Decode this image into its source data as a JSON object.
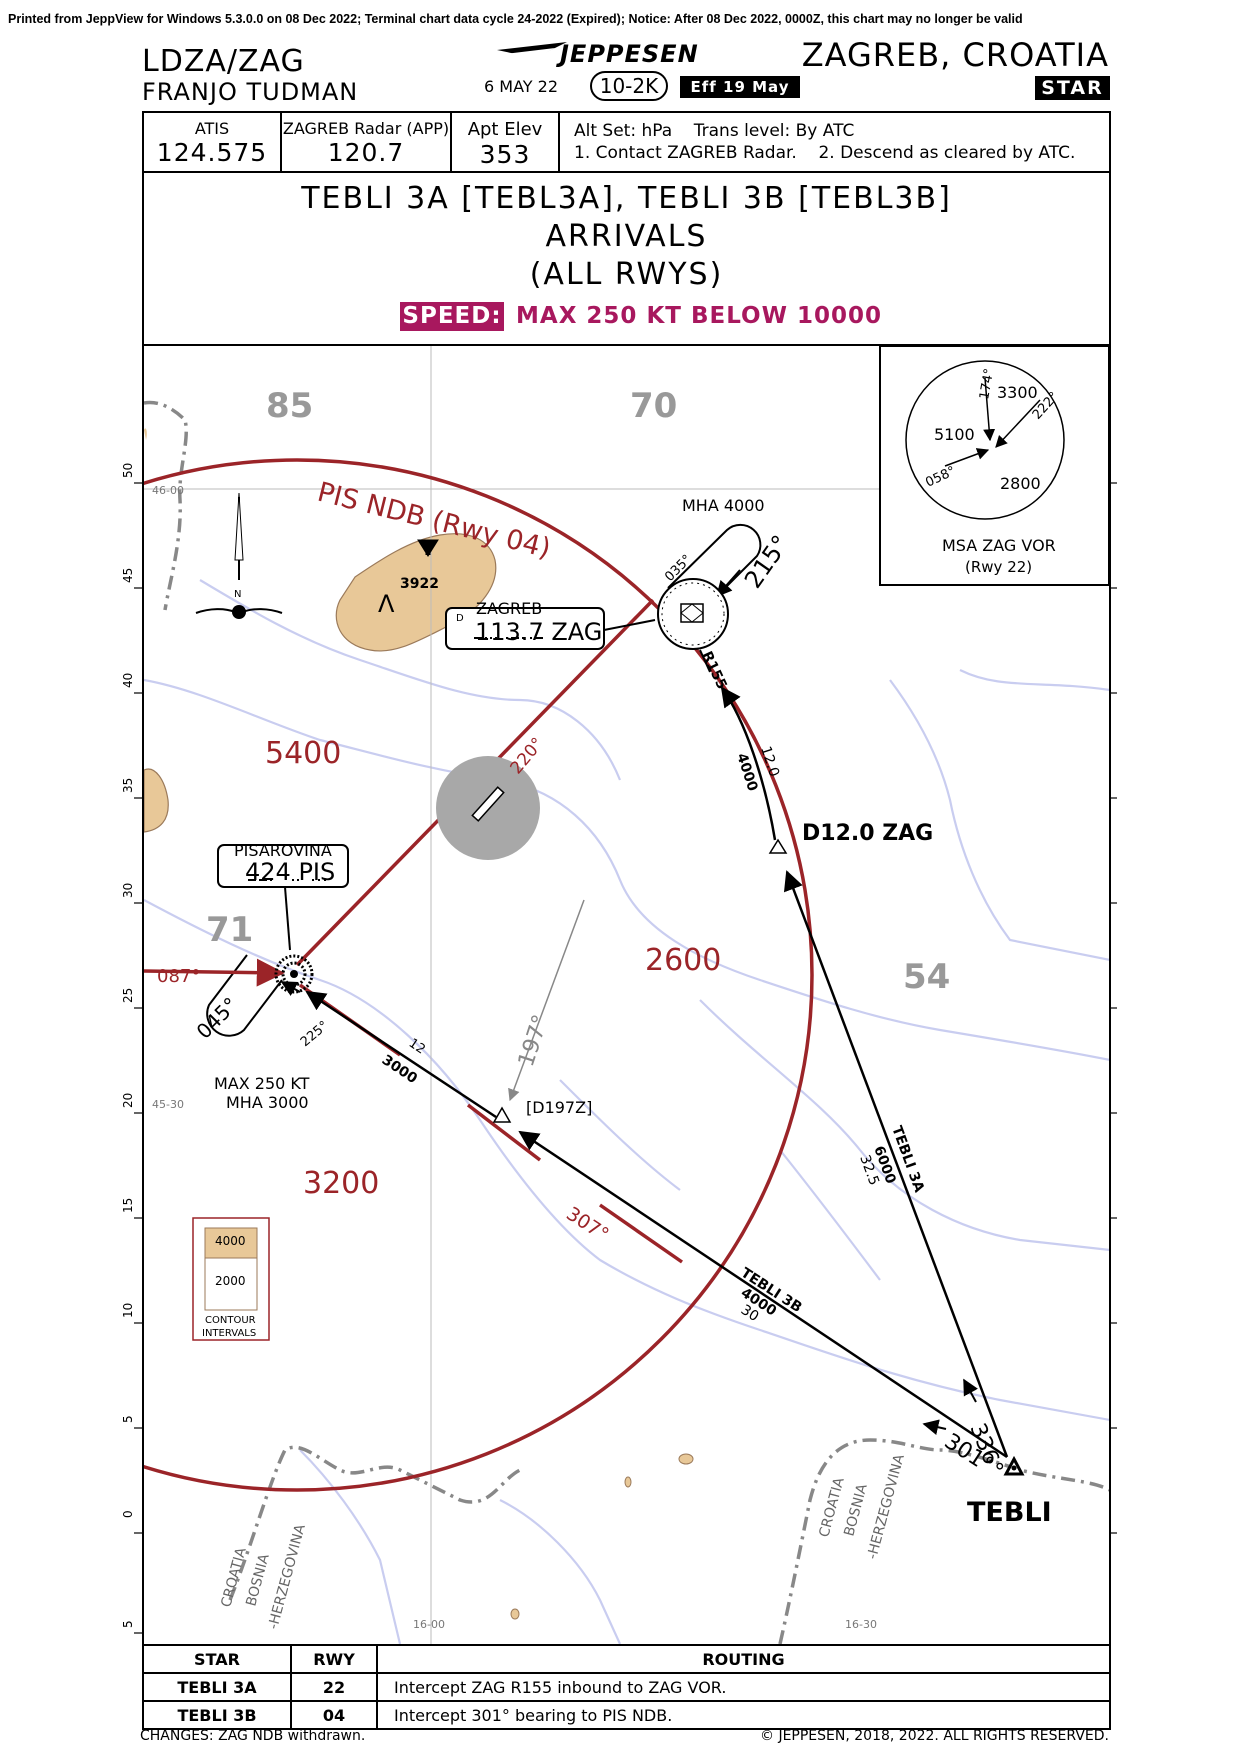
{
  "print_notice": "Printed from JeppView for Windows 5.3.0.0 on 08 Dec 2022; Terminal chart data cycle 24-2022 (Expired); Notice: After 08 Dec 2022, 0000Z, this chart may no longer be valid",
  "header": {
    "ident": "LDZA/ZAG",
    "airport_name": "FRANJO TUDMAN",
    "brand": "JEPPESEN",
    "date": "6 MAY 22",
    "chart_number": "10-2K",
    "effective": "Eff 19 May",
    "city": "ZAGREB, CROATIA",
    "chart_type": "STAR"
  },
  "comms": {
    "atis_label": "ATIS",
    "atis_freq": "124.575",
    "radar_label": "ZAGREB Radar (APP)",
    "radar_freq": "120.7",
    "elev_label": "Apt Elev",
    "elev_value": "353",
    "altset": "Alt Set: hPa    Trans level: By ATC",
    "notes": "1. Contact ZAGREB Radar.    2. Descend as cleared by ATC."
  },
  "title": {
    "line1": "TEBLI 3A [TEBL3A], TEBLI 3B [TEBL3B]",
    "line2": "ARRIVALS",
    "line3": "(ALL RWYS)",
    "speed_label": "SPEED:",
    "speed_text": "MAX 250 KT BELOW 10000"
  },
  "msa": {
    "v3300": "3300",
    "v5100": "5100",
    "v2800": "2800",
    "b174": "174°",
    "b222": "222°",
    "b058": "058°",
    "label": "MSA ZAG VOR",
    "sub": "(Rwy 22)"
  },
  "map": {
    "grid_85": "85",
    "grid_70": "70",
    "grid_71": "71",
    "grid_54": "54",
    "lat_ticks": [
      "50",
      "45",
      "40",
      "35",
      "30",
      "25",
      "20",
      "15",
      "10",
      "5",
      "0",
      "5"
    ],
    "lat_46": "46-00",
    "lat_4530": "45-30",
    "lon_1600": "16-00",
    "lon_1630": "16-30",
    "arc_label": "PIS NDB (Rwy 04)",
    "peak": "3922",
    "mha4000": "MHA 4000",
    "b035": "035°",
    "b215": "215°",
    "vor_name": "ZAGREB",
    "vor_freq": "113.7 ZAG",
    "vor_d": "D",
    "r155": "R155",
    "b220": "220°",
    "alt5400": "5400",
    "alt2600": "2600",
    "alt3200": "3200",
    "ndb_name": "PISAROVINA",
    "ndb_freq": "424 PIS",
    "b087": "087°",
    "b045": "045°",
    "b225": "225°",
    "hold_pis1": "MAX 250 KT",
    "hold_pis2": "MHA 3000",
    "seg12": "12",
    "seg3000": "3000",
    "b197": "197°",
    "d197": "[D197Z]",
    "b307": "307°",
    "d12": "D12.0 ZAG",
    "r155_alt": "4000",
    "r155_dist": "12.0",
    "tebli3a": "TEBLI 3A",
    "tebli3a_alt": "6000",
    "tebli3a_dist": "32.5",
    "tebli3b": "TEBLI 3B",
    "tebli3b_alt": "4000",
    "tebli3b_dist": "30",
    "b336": "336°",
    "b301": "301°",
    "tebli": "TEBLI",
    "north": "N",
    "contour_hi": "4000",
    "contour_lo": "2000",
    "contour_caption1": "CONTOUR",
    "contour_caption2": "INTERVALS",
    "border_w1": "CROATIA",
    "border_w2": "BOSNIA",
    "border_w3": "-HERZEGOVINA",
    "border_e1": "CROATIA",
    "border_e2": "BOSNIA",
    "border_e3": "-HERZEGOVINA"
  },
  "routing": {
    "headers": [
      "STAR",
      "RWY",
      "ROUTING"
    ],
    "rows": [
      {
        "star": "TEBLI 3A",
        "rwy": "22",
        "route": "Intercept ZAG R155 inbound to ZAG VOR."
      },
      {
        "star": "TEBLI 3B",
        "rwy": "04",
        "route": "Intercept 301° bearing to PIS NDB."
      }
    ]
  },
  "footer": {
    "changes": "CHANGES: ZAG NDB withdrawn.",
    "copyright": "© JEPPESEN, 2018, 2022. ALL RIGHTS RESERVED."
  },
  "colors": {
    "route_red": "#9b2428",
    "speed_magenta": "#a8185e",
    "terrain": "#e8c898",
    "water": "#c9cdf0",
    "grid_gray": "#999999"
  }
}
